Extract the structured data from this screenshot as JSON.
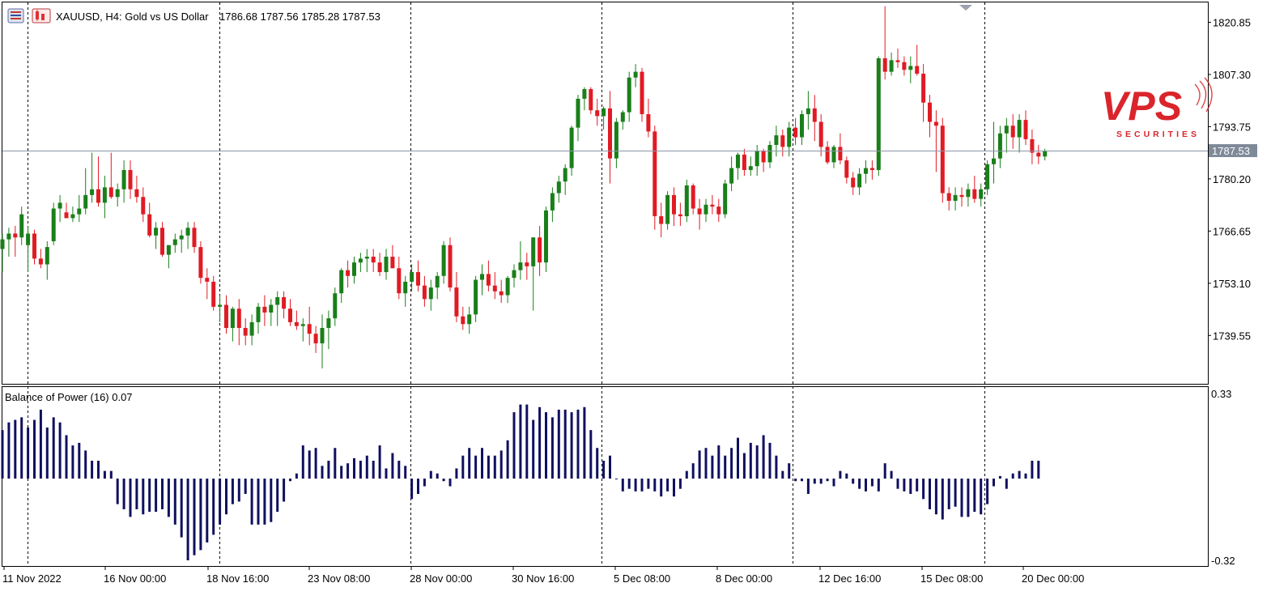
{
  "header": {
    "symbol_line": "XAUUSD, H4:  Gold vs US Dollar",
    "ohlc": "1786.68 1787.56 1785.28 1787.53",
    "chart_icon": "candlestick-chart-icon"
  },
  "indicator": {
    "label": "Balance of Power (16) 0.07",
    "axis_top": "0.33",
    "axis_bottom": "-0.32"
  },
  "price_axis": {
    "ticks": [
      "1820.85",
      "1807.30",
      "1793.75",
      "1780.20",
      "1766.65",
      "1753.10",
      "1739.55"
    ],
    "current": "1787.53"
  },
  "time_axis": {
    "ticks": [
      "11 Nov 2022",
      "16 Nov 00:00",
      "18 Nov 16:00",
      "23 Nov 08:00",
      "28 Nov 00:00",
      "30 Nov 16:00",
      "5 Dec 08:00",
      "8 Dec 00:00",
      "12 Dec 16:00",
      "15 Dec 08:00",
      "20 Dec 00:00"
    ]
  },
  "logo": {
    "text": "VPS",
    "subtext": "SECURITIES"
  },
  "colors": {
    "bull": "#1a7f1a",
    "bear": "#e01b24",
    "bop": "#101060",
    "grid": "#000000",
    "current_price_bg": "#7f8a99"
  },
  "chart_data": {
    "type": "candlestick",
    "symbol": "XAUUSD",
    "timeframe": "H4",
    "ylim": [
      1727,
      1826
    ],
    "candles": [
      [
        1762.0,
        1766.0,
        1756.0,
        1764.5
      ],
      [
        1764.5,
        1767.5,
        1760.0,
        1766.0
      ],
      [
        1766.0,
        1768.0,
        1760.0,
        1765.0
      ],
      [
        1765.0,
        1773.0,
        1763.0,
        1771.0
      ],
      [
        1763.0,
        1768.0,
        1756.0,
        1766.0
      ],
      [
        1766.0,
        1767.0,
        1758.0,
        1759.5
      ],
      [
        1759.5,
        1762.0,
        1757.0,
        1758.0
      ],
      [
        1758.0,
        1764.0,
        1754.0,
        1762.5
      ],
      [
        1764.0,
        1774.0,
        1763.0,
        1772.5
      ],
      [
        1772.5,
        1776.0,
        1769.0,
        1774.0
      ],
      [
        1771.5,
        1774.0,
        1770.0,
        1770.0
      ],
      [
        1770.0,
        1773.0,
        1769.0,
        1771.0
      ],
      [
        1771.0,
        1776.0,
        1769.0,
        1772.5
      ],
      [
        1772.5,
        1783.0,
        1771.0,
        1776.0
      ],
      [
        1776.0,
        1787.0,
        1774.0,
        1777.5
      ],
      [
        1777.5,
        1786.0,
        1773.0,
        1774.0
      ],
      [
        1774.0,
        1781.0,
        1770.0,
        1778.0
      ],
      [
        1778.0,
        1787.0,
        1775.0,
        1775.5
      ],
      [
        1775.5,
        1779.0,
        1773.0,
        1777.5
      ],
      [
        1777.5,
        1785.0,
        1774.0,
        1782.5
      ],
      [
        1782.5,
        1785.0,
        1775.0,
        1777.5
      ],
      [
        1777.5,
        1781.0,
        1774.0,
        1775.5
      ],
      [
        1775.5,
        1778.0,
        1769.0,
        1771.0
      ],
      [
        1771.0,
        1774.0,
        1765.0,
        1765.5
      ],
      [
        1765.5,
        1769.0,
        1762.0,
        1767.5
      ],
      [
        1767.5,
        1769.0,
        1760.0,
        1760.5
      ],
      [
        1760.5,
        1763.0,
        1757.0,
        1763.0
      ],
      [
        1763.0,
        1766.0,
        1761.0,
        1764.5
      ],
      [
        1764.5,
        1767.0,
        1761.0,
        1765.5
      ],
      [
        1765.5,
        1769.0,
        1762.0,
        1767.5
      ],
      [
        1767.5,
        1769.0,
        1761.0,
        1762.5
      ],
      [
        1762.5,
        1764.0,
        1753.0,
        1754.5
      ],
      [
        1754.5,
        1757.0,
        1749.0,
        1753.5
      ],
      [
        1753.5,
        1755.0,
        1746.0,
        1747.0
      ],
      [
        1747.0,
        1750.0,
        1743.0,
        1747.5
      ],
      [
        1747.5,
        1750.0,
        1740.0,
        1741.5
      ],
      [
        1741.5,
        1747.0,
        1738.0,
        1746.5
      ],
      [
        1746.5,
        1749.0,
        1737.0,
        1741.5
      ],
      [
        1741.5,
        1744.0,
        1737.0,
        1739.5
      ],
      [
        1739.5,
        1745.0,
        1737.0,
        1743.0
      ],
      [
        1743.0,
        1748.0,
        1740.0,
        1747.0
      ],
      [
        1747.0,
        1750.0,
        1742.0,
        1745.5
      ],
      [
        1745.5,
        1749.0,
        1742.0,
        1747.5
      ],
      [
        1747.5,
        1751.0,
        1742.0,
        1749.5
      ],
      [
        1749.5,
        1751.0,
        1744.0,
        1746.5
      ],
      [
        1746.5,
        1749.0,
        1742.0,
        1743.0
      ],
      [
        1743.0,
        1746.0,
        1741.0,
        1742.0
      ],
      [
        1742.0,
        1744.0,
        1738.0,
        1742.5
      ],
      [
        1742.5,
        1747.0,
        1737.0,
        1740.0
      ],
      [
        1740.0,
        1742.0,
        1735.0,
        1737.5
      ],
      [
        1737.5,
        1745.0,
        1731.0,
        1741.5
      ],
      [
        1741.5,
        1746.0,
        1736.0,
        1744.0
      ],
      [
        1744.0,
        1752.0,
        1742.0,
        1750.5
      ],
      [
        1750.5,
        1757.0,
        1748.0,
        1756.5
      ],
      [
        1756.5,
        1759.0,
        1752.0,
        1755.0
      ],
      [
        1755.0,
        1760.0,
        1753.0,
        1758.5
      ],
      [
        1758.5,
        1761.0,
        1756.0,
        1759.5
      ],
      [
        1759.5,
        1762.0,
        1756.0,
        1760.0
      ],
      [
        1760.0,
        1762.0,
        1756.0,
        1758.5
      ],
      [
        1758.5,
        1761.0,
        1755.0,
        1756.0
      ],
      [
        1756.0,
        1762.0,
        1754.0,
        1760.0
      ],
      [
        1760.0,
        1763.0,
        1757.0,
        1757.0
      ],
      [
        1757.0,
        1760.0,
        1749.0,
        1750.5
      ],
      [
        1750.5,
        1755.0,
        1747.0,
        1753.5
      ],
      [
        1753.5,
        1758.0,
        1751.0,
        1756.0
      ],
      [
        1756.0,
        1759.0,
        1751.0,
        1752.5
      ],
      [
        1752.5,
        1755.0,
        1747.0,
        1749.0
      ],
      [
        1749.0,
        1754.0,
        1746.0,
        1752.0
      ],
      [
        1752.0,
        1756.0,
        1749.0,
        1755.0
      ],
      [
        1755.0,
        1764.0,
        1753.0,
        1763.0
      ],
      [
        1763.0,
        1765.0,
        1751.0,
        1752.0
      ],
      [
        1752.0,
        1756.0,
        1743.0,
        1744.5
      ],
      [
        1744.5,
        1747.0,
        1741.0,
        1742.5
      ],
      [
        1742.5,
        1747.0,
        1740.0,
        1745.0
      ],
      [
        1745.0,
        1755.0,
        1743.0,
        1754.0
      ],
      [
        1754.0,
        1758.0,
        1750.0,
        1755.5
      ],
      [
        1755.5,
        1759.0,
        1751.0,
        1752.5
      ],
      [
        1752.5,
        1756.0,
        1749.0,
        1751.0
      ],
      [
        1751.0,
        1754.0,
        1748.0,
        1750.0
      ],
      [
        1750.0,
        1755.0,
        1748.0,
        1754.5
      ],
      [
        1754.5,
        1758.0,
        1752.0,
        1756.5
      ],
      [
        1756.5,
        1764.0,
        1754.0,
        1758.5
      ],
      [
        1758.5,
        1761.0,
        1754.0,
        1757.5
      ],
      [
        1757.5,
        1765.0,
        1746.0,
        1765.0
      ],
      [
        1765.0,
        1768.0,
        1755.0,
        1758.5
      ],
      [
        1758.5,
        1773.0,
        1756.0,
        1772.0
      ],
      [
        1772.0,
        1778.0,
        1769.0,
        1776.5
      ],
      [
        1776.5,
        1781.0,
        1774.0,
        1779.5
      ],
      [
        1779.5,
        1784.0,
        1776.0,
        1783.0
      ],
      [
        1783.0,
        1794.0,
        1781.0,
        1793.5
      ],
      [
        1793.5,
        1802.0,
        1790.0,
        1801.0
      ],
      [
        1801.0,
        1804.0,
        1798.0,
        1803.5
      ],
      [
        1803.5,
        1804.0,
        1797.0,
        1798.0
      ],
      [
        1798.0,
        1801.0,
        1794.0,
        1796.5
      ],
      [
        1796.5,
        1799.0,
        1793.0,
        1798.5
      ],
      [
        1798.5,
        1803.0,
        1779.0,
        1785.5
      ],
      [
        1785.5,
        1796.0,
        1783.0,
        1795.0
      ],
      [
        1795.0,
        1798.0,
        1793.0,
        1797.5
      ],
      [
        1797.5,
        1808.0,
        1795.0,
        1806.5
      ],
      [
        1806.5,
        1810.0,
        1804.0,
        1808.0
      ],
      [
        1808.0,
        1809.0,
        1795.0,
        1797.0
      ],
      [
        1797.0,
        1801.0,
        1791.0,
        1792.5
      ],
      [
        1792.5,
        1794.0,
        1767.0,
        1770.5
      ],
      [
        1770.5,
        1774.0,
        1765.0,
        1768.5
      ],
      [
        1768.5,
        1777.0,
        1767.0,
        1776.0
      ],
      [
        1776.0,
        1778.0,
        1768.0,
        1771.0
      ],
      [
        1771.0,
        1774.0,
        1768.0,
        1770.5
      ],
      [
        1770.5,
        1780.0,
        1769.0,
        1778.5
      ],
      [
        1778.5,
        1779.0,
        1771.0,
        1772.5
      ],
      [
        1772.5,
        1775.0,
        1767.0,
        1771.0
      ],
      [
        1771.0,
        1775.0,
        1769.0,
        1773.5
      ],
      [
        1773.5,
        1776.0,
        1771.0,
        1773.0
      ],
      [
        1773.0,
        1775.0,
        1769.0,
        1771.0
      ],
      [
        1771.0,
        1780.0,
        1770.0,
        1779.0
      ],
      [
        1779.0,
        1786.0,
        1777.0,
        1783.0
      ],
      [
        1783.0,
        1787.0,
        1780.0,
        1786.5
      ],
      [
        1786.5,
        1788.0,
        1781.0,
        1782.5
      ],
      [
        1782.5,
        1786.0,
        1781.0,
        1783.5
      ],
      [
        1783.5,
        1789.0,
        1781.0,
        1787.5
      ],
      [
        1787.5,
        1788.0,
        1782.0,
        1784.5
      ],
      [
        1784.5,
        1790.0,
        1783.0,
        1789.0
      ],
      [
        1789.0,
        1794.0,
        1786.0,
        1791.5
      ],
      [
        1791.5,
        1793.0,
        1786.0,
        1788.5
      ],
      [
        1788.5,
        1795.0,
        1786.0,
        1793.5
      ],
      [
        1793.5,
        1796.0,
        1789.0,
        1791.0
      ],
      [
        1791.0,
        1798.0,
        1789.0,
        1797.0
      ],
      [
        1797.0,
        1803.0,
        1793.0,
        1798.5
      ],
      [
        1798.5,
        1802.0,
        1790.0,
        1795.0
      ],
      [
        1795.0,
        1797.0,
        1786.0,
        1788.5
      ],
      [
        1788.5,
        1790.0,
        1784.0,
        1784.5
      ],
      [
        1784.5,
        1789.0,
        1783.0,
        1788.5
      ],
      [
        1788.5,
        1792.0,
        1784.0,
        1785.0
      ],
      [
        1785.0,
        1786.0,
        1779.0,
        1780.5
      ],
      [
        1780.5,
        1782.0,
        1776.0,
        1778.0
      ],
      [
        1778.0,
        1783.0,
        1776.0,
        1781.5
      ],
      [
        1781.5,
        1785.0,
        1779.0,
        1783.0
      ],
      [
        1783.0,
        1785.0,
        1780.0,
        1782.5
      ],
      [
        1782.5,
        1812.0,
        1781.0,
        1811.5
      ],
      [
        1811.5,
        1825.0,
        1806.0,
        1808.0
      ],
      [
        1808.0,
        1813.0,
        1807.0,
        1811.0
      ],
      [
        1811.0,
        1814.0,
        1809.0,
        1810.5
      ],
      [
        1810.5,
        1812.0,
        1807.0,
        1808.5
      ],
      [
        1808.5,
        1812.0,
        1805.0,
        1809.5
      ],
      [
        1809.5,
        1815.0,
        1807.0,
        1807.5
      ],
      [
        1807.5,
        1810.0,
        1795.0,
        1800.0
      ],
      [
        1800.0,
        1802.0,
        1791.0,
        1795.0
      ],
      [
        1795.0,
        1798.0,
        1782.0,
        1794.0
      ],
      [
        1794.0,
        1796.0,
        1774.0,
        1776.5
      ],
      [
        1776.5,
        1778.0,
        1772.0,
        1774.5
      ],
      [
        1774.5,
        1778.0,
        1772.0,
        1776.0
      ],
      [
        1776.0,
        1778.0,
        1773.0,
        1775.5
      ],
      [
        1775.5,
        1779.0,
        1773.0,
        1777.5
      ],
      [
        1777.5,
        1781.0,
        1774.0,
        1775.0
      ],
      [
        1775.0,
        1779.0,
        1773.0,
        1777.5
      ],
      [
        1777.5,
        1785.0,
        1776.0,
        1784.0
      ],
      [
        1784.0,
        1795.0,
        1779.0,
        1785.5
      ],
      [
        1785.5,
        1794.0,
        1783.0,
        1792.0
      ],
      [
        1792.0,
        1796.0,
        1787.0,
        1794.0
      ],
      [
        1794.0,
        1797.0,
        1788.0,
        1791.0
      ],
      [
        1791.0,
        1797.0,
        1787.0,
        1795.5
      ],
      [
        1795.5,
        1798.0,
        1789.0,
        1790.5
      ],
      [
        1790.5,
        1793.0,
        1784.0,
        1787.0
      ],
      [
        1787.0,
        1789.0,
        1784.0,
        1786.0
      ],
      [
        1786.0,
        1788.0,
        1785.0,
        1787.53
      ]
    ],
    "indicator": {
      "name": "Balance of Power (16)",
      "last": 0.07,
      "ylim": [
        -0.32,
        0.33
      ],
      "values": [
        0.19,
        0.22,
        0.23,
        0.24,
        0.2,
        0.23,
        0.27,
        0.2,
        0.24,
        0.22,
        0.17,
        0.13,
        0.14,
        0.11,
        0.07,
        0.07,
        0.03,
        0.03,
        -0.1,
        -0.12,
        -0.15,
        -0.12,
        -0.14,
        -0.13,
        -0.13,
        -0.12,
        -0.15,
        -0.18,
        -0.23,
        -0.32,
        -0.3,
        -0.28,
        -0.25,
        -0.22,
        -0.18,
        -0.14,
        -0.1,
        -0.09,
        -0.06,
        -0.18,
        -0.18,
        -0.18,
        -0.17,
        -0.13,
        -0.09,
        -0.01,
        0.02,
        0.13,
        0.11,
        0.12,
        0.05,
        0.07,
        0.12,
        0.05,
        0.06,
        0.08,
        0.07,
        0.09,
        0.07,
        0.13,
        0.04,
        0.1,
        0.07,
        0.05,
        -0.08,
        -0.06,
        -0.03,
        0.03,
        0.02,
        -0.01,
        -0.03,
        0.04,
        0.09,
        0.12,
        0.09,
        0.12,
        0.09,
        0.09,
        0.11,
        0.15,
        0.26,
        0.29,
        0.29,
        0.23,
        0.28,
        0.26,
        0.24,
        0.27,
        0.27,
        0.26,
        0.27,
        0.28,
        0.19,
        0.12,
        0.07,
        0.09,
        0.0,
        -0.05,
        -0.04,
        -0.05,
        -0.05,
        -0.04,
        -0.05,
        -0.07,
        -0.05,
        -0.07,
        -0.04,
        0.03,
        0.06,
        0.11,
        0.12,
        0.09,
        0.13,
        0.09,
        0.12,
        0.16,
        0.1,
        0.14,
        0.13,
        0.17,
        0.14,
        0.09,
        0.03,
        0.06,
        -0.01,
        -0.01,
        -0.06,
        -0.02,
        -0.02,
        -0.01,
        -0.03,
        0.03,
        0.02,
        -0.02,
        -0.04,
        -0.05,
        -0.03,
        -0.05,
        0.06,
        0.03,
        -0.04,
        -0.05,
        -0.06,
        -0.05,
        -0.08,
        -0.12,
        -0.14,
        -0.16,
        -0.12,
        -0.11,
        -0.15,
        -0.15,
        -0.13,
        -0.14,
        -0.1,
        -0.03,
        0.01,
        -0.04,
        0.02,
        0.03,
        0.02,
        0.07,
        0.07
      ]
    }
  }
}
